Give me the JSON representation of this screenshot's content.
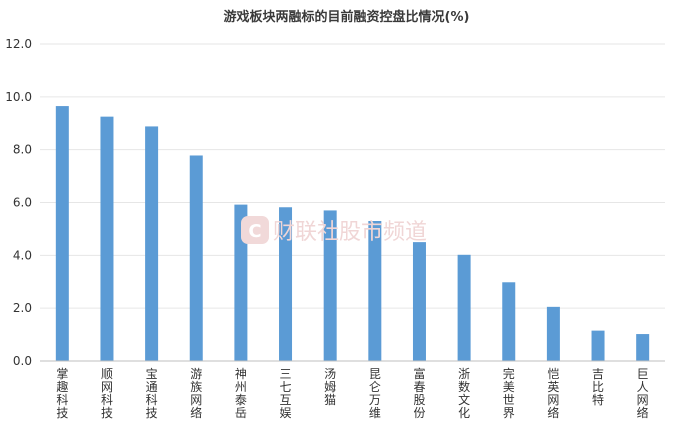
{
  "chart_data": {
    "type": "bar",
    "title": "游戏板块两融标的目前融资控盘比情况(%)",
    "xlabel": "",
    "ylabel": "",
    "ylim": [
      0,
      12
    ],
    "yticks": [
      "0.0",
      "2.0",
      "4.0",
      "6.0",
      "8.0",
      "10.0",
      "12.0"
    ],
    "grid": true,
    "bar_color": "#5b9bd5",
    "categories": [
      "掌趣科技",
      "顺网科技",
      "宝通科技",
      "游族网络",
      "神州泰岳",
      "三七互娱",
      "汤姆猫",
      "昆仑万维",
      "富春股份",
      "浙数文化",
      "完美世界",
      "恺英网络",
      "吉比特",
      "巨人网络"
    ],
    "values": [
      9.65,
      9.25,
      8.88,
      7.78,
      5.92,
      5.82,
      5.7,
      5.3,
      4.5,
      4.02,
      2.98,
      2.05,
      1.15,
      1.02
    ]
  },
  "watermark": {
    "text": "财联社股市频道",
    "logo_letter": "C"
  }
}
